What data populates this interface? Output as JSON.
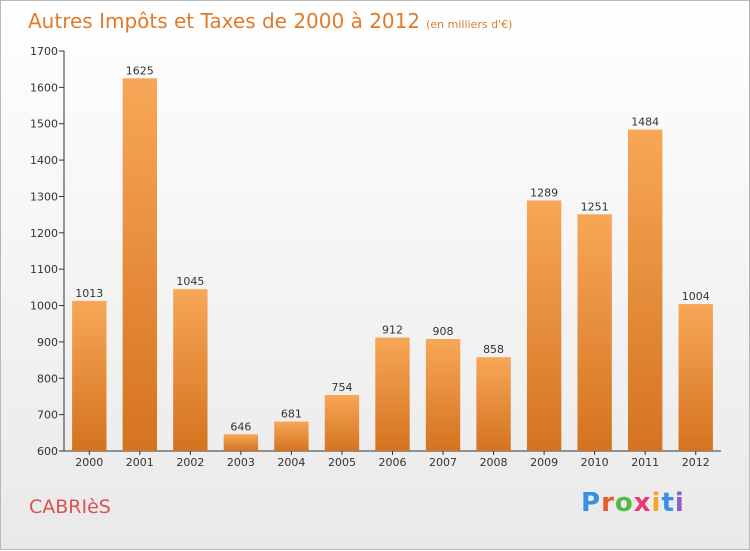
{
  "header": {
    "title": "Autres Impôts et Taxes de 2000 à 2012",
    "subtitle": "(en milliers d'€)"
  },
  "footer": {
    "commune": "CABRIèS",
    "logo": [
      "P",
      "r",
      "o",
      "x",
      "i",
      "t",
      "i"
    ],
    "logo_colors": [
      "#3a8ee6",
      "#e85b2a",
      "#55b848",
      "#e83a6e",
      "#f4a52a",
      "#3a8ee6",
      "#8c5ec9"
    ]
  },
  "colors": {
    "bar_top": "#f7a757",
    "bar_bottom": "#d4731f",
    "title": "#e07b2a",
    "commune": "#d9534f"
  },
  "chart_data": {
    "type": "bar",
    "title": "Autres Impôts et Taxes de 2000 à 2012",
    "subtitle": "(en milliers d'€)",
    "categories": [
      "2000",
      "2001",
      "2002",
      "2003",
      "2004",
      "2005",
      "2006",
      "2007",
      "2008",
      "2009",
      "2010",
      "2011",
      "2012"
    ],
    "values": [
      1013,
      1625,
      1045,
      646,
      681,
      754,
      912,
      908,
      858,
      1289,
      1251,
      1484,
      1004
    ],
    "ylim": [
      600,
      1700
    ],
    "yticks": [
      600,
      700,
      800,
      900,
      1000,
      1100,
      1200,
      1300,
      1400,
      1500,
      1600,
      1700
    ],
    "grid": false,
    "data_labels": true
  }
}
